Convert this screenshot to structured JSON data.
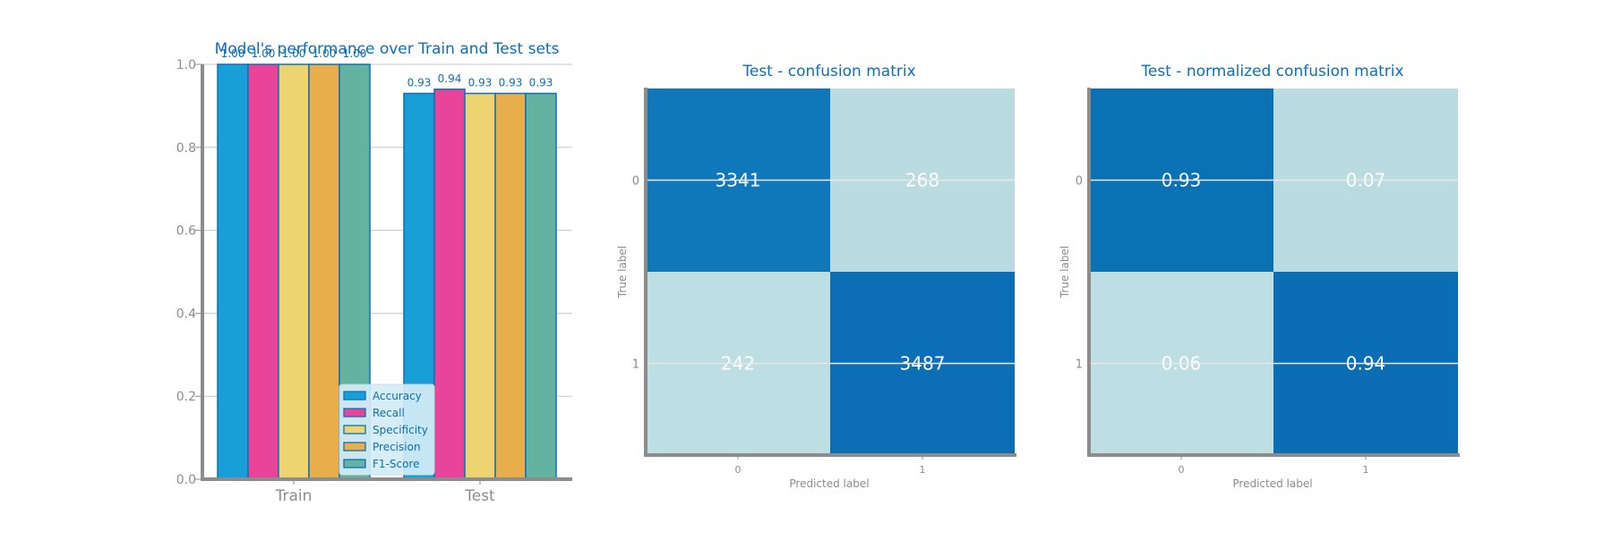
{
  "chart_data": [
    {
      "type": "bar",
      "title": "Model's performance over Train and Test sets",
      "categories": [
        "Train",
        "Test"
      ],
      "series": [
        {
          "name": "Accuracy",
          "values": [
            1.0,
            0.93
          ],
          "color": "#199fd8"
        },
        {
          "name": "Recall",
          "values": [
            1.0,
            0.94
          ],
          "color": "#e9449a"
        },
        {
          "name": "Specificity",
          "values": [
            1.0,
            0.93
          ],
          "color": "#edd470"
        },
        {
          "name": "Precision",
          "values": [
            1.0,
            0.93
          ],
          "color": "#e8ae4c"
        },
        {
          "name": "F1-Score",
          "values": [
            1.0,
            0.93
          ],
          "color": "#62b3a0"
        }
      ],
      "value_labels": [
        [
          "1.00",
          "1.00",
          "1.00",
          "1.00",
          "1.00"
        ],
        [
          "0.93",
          "0.94",
          "0.93",
          "0.93",
          "0.93"
        ]
      ],
      "ylim": [
        0,
        1.0
      ],
      "yticks": [
        "0.0",
        "0.2",
        "0.4",
        "0.6",
        "0.8",
        "1.0"
      ],
      "grid": true,
      "legend_position": "lower-right",
      "bar_edge_color": "#0e6fb5"
    },
    {
      "type": "heatmap",
      "title": "Test - confusion matrix",
      "xlabel": "Predicted label",
      "ylabel": "True label",
      "xticks": [
        "0",
        "1"
      ],
      "yticks": [
        "0",
        "1"
      ],
      "values": [
        [
          "3341",
          "268"
        ],
        [
          "242",
          "3487"
        ]
      ],
      "cell_colors": [
        [
          "#0e78bb",
          "#badbe0"
        ],
        [
          "#bddee2",
          "#0c6fb5"
        ]
      ]
    },
    {
      "type": "heatmap",
      "title": "Test - normalized confusion matrix",
      "xlabel": "Predicted label",
      "ylabel": "True label",
      "xticks": [
        "0",
        "1"
      ],
      "yticks": [
        "0",
        "1"
      ],
      "values": [
        [
          "0.93",
          "0.07"
        ],
        [
          "0.06",
          "0.94"
        ]
      ],
      "cell_colors": [
        [
          "#0b71b5",
          "#badbe0"
        ],
        [
          "#bddee2",
          "#0b6db4"
        ]
      ]
    }
  ]
}
